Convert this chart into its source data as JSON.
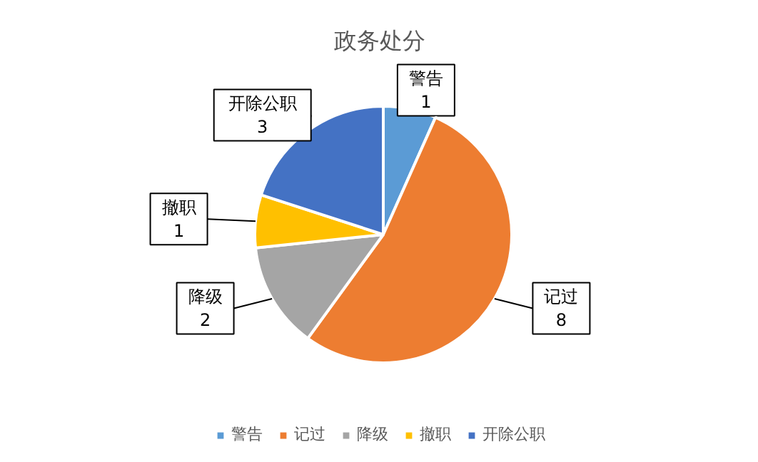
{
  "chart_data": {
    "type": "pie",
    "title": "政务处分",
    "categories": [
      "警告",
      "记过",
      "降级",
      "撤职",
      "开除公职"
    ],
    "values": [
      1,
      8,
      2,
      1,
      3
    ],
    "colors": [
      "#5b9bd5",
      "#ed7d31",
      "#a5a5a5",
      "#ffc000",
      "#4472c4"
    ],
    "data_labels": true,
    "legend": "bottom"
  }
}
